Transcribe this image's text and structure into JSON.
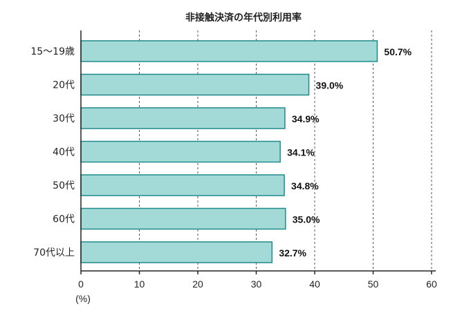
{
  "chart_data": {
    "type": "bar",
    "orientation": "horizontal",
    "title": "非接触決済の年代別利用率",
    "categories": [
      "15〜19歳",
      "20代",
      "30代",
      "40代",
      "50代",
      "60代",
      "70代以上"
    ],
    "values": [
      50.7,
      39.0,
      34.9,
      34.1,
      34.8,
      35.0,
      32.7
    ],
    "value_labels": [
      "50.7%",
      "39.0%",
      "34.9%",
      "34.1%",
      "34.8%",
      "35.0%",
      "32.7%"
    ],
    "xlabel": "(%)",
    "xlim": [
      0,
      60
    ],
    "xticks": [
      0,
      10,
      20,
      30,
      40,
      50,
      60
    ],
    "grid": "vertical dashed",
    "bar_color": "#a3d9d7",
    "bar_edge_color": "#1f8a8a"
  }
}
